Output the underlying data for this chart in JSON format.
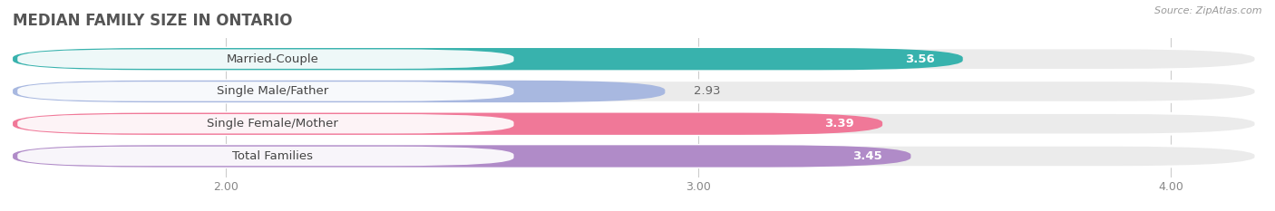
{
  "title": "MEDIAN FAMILY SIZE IN ONTARIO",
  "source": "Source: ZipAtlas.com",
  "categories": [
    "Married-Couple",
    "Single Male/Father",
    "Single Female/Mother",
    "Total Families"
  ],
  "values": [
    3.56,
    2.93,
    3.39,
    3.45
  ],
  "bar_colors": [
    "#38b2ad",
    "#a8b8e0",
    "#f07898",
    "#b08bc8"
  ],
  "bar_bg_colors": [
    "#ebebeb",
    "#ebebeb",
    "#ebebeb",
    "#ebebeb"
  ],
  "xlim_min": 1.55,
  "xlim_max": 4.18,
  "xticks": [
    2.0,
    3.0,
    4.0
  ],
  "xtick_labels": [
    "2.00",
    "3.00",
    "4.00"
  ],
  "label_fontsize": 9.5,
  "value_fontsize": 9.5,
  "title_fontsize": 12,
  "background_color": "#ffffff",
  "bar_area_bg": "#f0f0f0"
}
